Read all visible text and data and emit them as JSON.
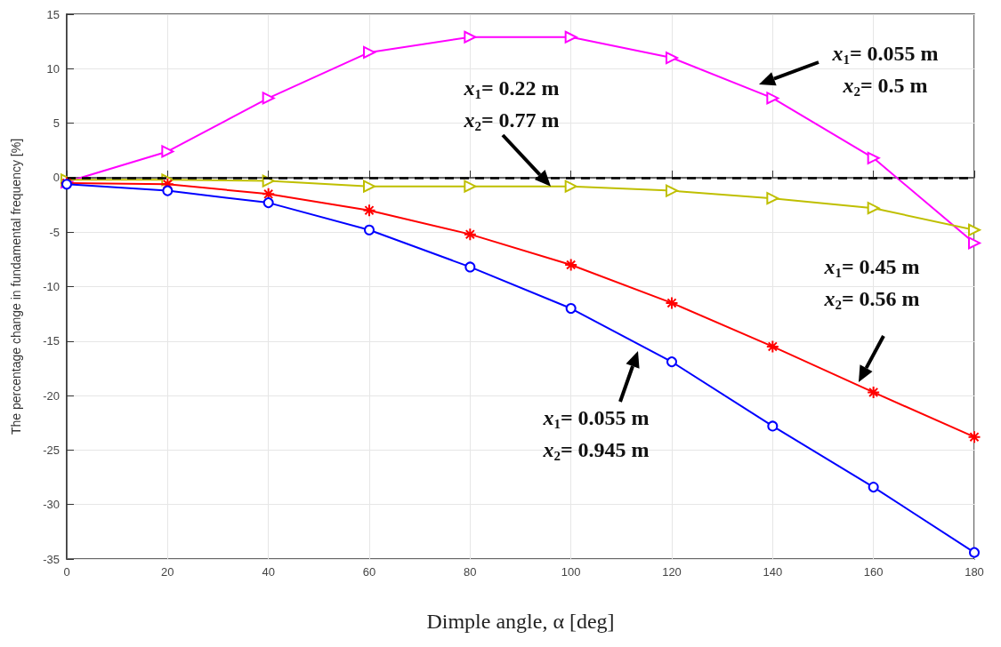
{
  "chart_data": {
    "type": "line",
    "xlabel": "Dimple angle, α [deg]",
    "ylabel": "The percentage change in fundamental frequency [%]",
    "x": [
      0,
      20,
      40,
      60,
      80,
      100,
      120,
      140,
      160,
      180
    ],
    "series": [
      {
        "color": "#ff00ff",
        "marker": "triangle",
        "values": [
          -0.4,
          2.4,
          7.3,
          11.5,
          12.9,
          12.9,
          11.0,
          7.3,
          1.8,
          -6.0
        ]
      },
      {
        "color": "#bfbf00",
        "marker": "triangle",
        "values": [
          -0.2,
          -0.2,
          -0.3,
          -0.8,
          -0.8,
          -0.8,
          -1.2,
          -1.9,
          -2.8,
          -4.8
        ]
      },
      {
        "color": "#ff0000",
        "marker": "cross",
        "values": [
          -0.5,
          -0.6,
          -1.5,
          -3.0,
          -5.2,
          -8.0,
          -11.5,
          -15.5,
          -19.7,
          -23.8
        ]
      },
      {
        "color": "#0000ff",
        "marker": "circle",
        "values": [
          -0.6,
          -1.2,
          -2.3,
          -4.8,
          -8.2,
          -12.0,
          -16.9,
          -22.8,
          -28.4,
          -34.4
        ]
      }
    ],
    "xlim": [
      0,
      180
    ],
    "xticks": [
      0,
      20,
      40,
      60,
      80,
      100,
      120,
      140,
      160,
      180
    ],
    "ylim": [
      -35,
      15
    ],
    "yticks": [
      -35,
      -30,
      -25,
      -20,
      -15,
      -10,
      -5,
      0,
      5,
      10,
      15
    ],
    "grid": true,
    "line_style": "solid",
    "ref_lines": [
      {
        "axis": "y",
        "value": 0,
        "color": "#000000",
        "line_style": "dashed"
      }
    ],
    "annotations": [
      "x$_{1}$= 0.055 m\nx$_{2}$= 0.5 m",
      {
        "text": "x$_{1}$= 0.22 m\nx$_{2}$= 0.77 m",
        "x": 96,
        "y": -0.8
      },
      "x$_{1}$= 0.45 m\nx$_{2}$= 0.56 m",
      "x$_{1}$= 0.055 m\nx$_{2}$= 0.945 m"
    ]
  }
}
